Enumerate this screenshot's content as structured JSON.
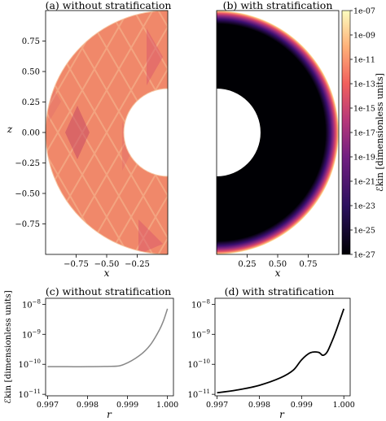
{
  "figure": {
    "panel_a": {
      "title": "(a)   without stratification",
      "xlabel": "x",
      "ylabel": "z"
    },
    "panel_b": {
      "title": "(b)   with stratification",
      "xlabel": "x"
    },
    "colorbar": {
      "label": "ℰkin [dimensionless units]"
    },
    "panel_c": {
      "title": "(c)   without stratification",
      "xlabel": "r",
      "ylabel": "ℰkin [dimensionless units]"
    },
    "panel_d": {
      "title": "(d)   with stratification",
      "xlabel": "r"
    }
  },
  "chart_data": [
    {
      "id": "a",
      "type": "heatmap",
      "title": "(a)   without stratification",
      "xlabel": "x",
      "ylabel": "z",
      "xlim": [
        -1.0,
        0.0
      ],
      "ylim": [
        -1.0,
        1.0
      ],
      "xticks": [
        "−0.75",
        "−0.50",
        "−0.25"
      ],
      "xtick_values": [
        -0.75,
        -0.5,
        -0.25
      ],
      "yticks": [
        "0.75",
        "0.50",
        "0.25",
        "0.00",
        "−0.25",
        "−0.50",
        "−0.75"
      ],
      "ytick_values": [
        0.75,
        0.5,
        0.25,
        0.0,
        -0.25,
        -0.5,
        -0.75
      ],
      "domain": {
        "shape": "half-annulus",
        "r_inner": 0.35,
        "r_outer": 1.0
      },
      "field_level_log10": -9.5
    },
    {
      "id": "b",
      "type": "heatmap",
      "title": "(b)   with stratification",
      "xlabel": "x",
      "xlim": [
        0.0,
        1.0
      ],
      "ylim": [
        -1.0,
        1.0
      ],
      "xticks": [
        "0.25",
        "0.50",
        "0.75"
      ],
      "xtick_values": [
        0.25,
        0.5,
        0.75
      ],
      "domain": {
        "shape": "half-annulus",
        "r_inner": 0.35,
        "r_outer": 1.0
      },
      "colorbar": {
        "label": "ℰkin [dimensionless units]",
        "scale": "log",
        "range": [
          1e-27,
          1e-07
        ],
        "ticks": [
          "1e-07",
          "1e-09",
          "1e-11",
          "1e-13",
          "1e-15",
          "1e-17",
          "1e-19",
          "1e-21",
          "1e-23",
          "1e-25",
          "1e-27"
        ],
        "colormap": [
          "#000004",
          "#2c115f",
          "#721f81",
          "#b73779",
          "#f1605d",
          "#feb078",
          "#fcfdbf"
        ]
      }
    },
    {
      "id": "c",
      "type": "line",
      "title": "(c)   without stratification",
      "xlabel": "r",
      "ylabel": "ℰkin [dimensionless units]",
      "yscale": "log",
      "xlim": [
        0.99695,
        1.00015
      ],
      "ylim_log10": [
        -11.05,
        -7.8
      ],
      "xticks": [
        "0.997",
        "0.998",
        "0.999",
        "1.000"
      ],
      "xtick_values": [
        0.997,
        0.998,
        0.999,
        1.0
      ],
      "yticks": [
        "10−8",
        "10−9",
        "10−10",
        "10−11"
      ],
      "ytick_values_log10": [
        -8,
        -9,
        -10,
        -11
      ],
      "series": [
        {
          "color": "#888888",
          "x": [
            0.997,
            0.9975,
            0.998,
            0.9985,
            0.9988,
            0.999,
            0.9992,
            0.9994,
            0.9996,
            0.9998,
            0.9999,
            1.0
          ],
          "log10_y": [
            -10.08,
            -10.08,
            -10.08,
            -10.07,
            -10.05,
            -9.95,
            -9.8,
            -9.6,
            -9.3,
            -8.85,
            -8.55,
            -8.15
          ]
        }
      ]
    },
    {
      "id": "d",
      "type": "line",
      "title": "(d)   with stratification",
      "xlabel": "r",
      "yscale": "log",
      "xlim": [
        0.99695,
        1.00015
      ],
      "ylim_log10": [
        -11.05,
        -7.8
      ],
      "xticks": [
        "0.997",
        "0.998",
        "0.999",
        "1.000"
      ],
      "xtick_values": [
        0.997,
        0.998,
        0.999,
        1.0
      ],
      "yticks": [
        "10−8",
        "10−9",
        "10−10",
        "10−11"
      ],
      "ytick_values_log10": [
        -8,
        -9,
        -10,
        -11
      ],
      "series": [
        {
          "color": "#000000",
          "x": [
            0.997,
            0.9975,
            0.998,
            0.9985,
            0.9988,
            0.999,
            0.9992,
            0.9994,
            0.9995,
            0.9996,
            0.9997,
            0.9998,
            1.0
          ],
          "log10_y": [
            -10.95,
            -10.85,
            -10.7,
            -10.45,
            -10.2,
            -9.85,
            -9.62,
            -9.6,
            -9.7,
            -9.6,
            -9.3,
            -8.95,
            -8.15
          ]
        }
      ]
    }
  ]
}
